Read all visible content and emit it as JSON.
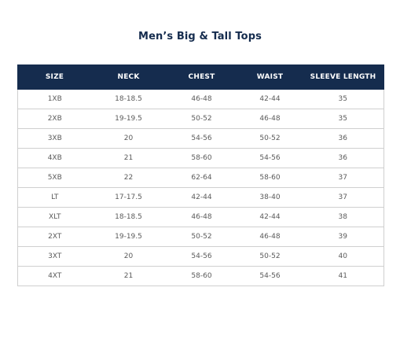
{
  "title": "Men’s Big & Tall Tops",
  "table": {
    "headers": [
      "SIZE",
      "NECK",
      "CHEST",
      "WAIST",
      "SLEEVE LENGTH"
    ],
    "rows": [
      [
        "1XB",
        "18-18.5",
        "46-48",
        "42-44",
        "35"
      ],
      [
        "2XB",
        "19-19.5",
        "50-52",
        "46-48",
        "35"
      ],
      [
        "3XB",
        "20",
        "54-56",
        "50-52",
        "36"
      ],
      [
        "4XB",
        "21",
        "58-60",
        "54-56",
        "36"
      ],
      [
        "5XB",
        "22",
        "62-64",
        "58-60",
        "37"
      ],
      [
        "LT",
        "17-17.5",
        "42-44",
        "38-40",
        "37"
      ],
      [
        "XLT",
        "18-18.5",
        "46-48",
        "42-44",
        "38"
      ],
      [
        "2XT",
        "19-19.5",
        "50-52",
        "46-48",
        "39"
      ],
      [
        "3XT",
        "20",
        "54-56",
        "50-52",
        "40"
      ],
      [
        "4XT",
        "21",
        "58-60",
        "54-56",
        "41"
      ]
    ]
  },
  "colors": {
    "header_bg": "#152c4e",
    "header_text": "#ffffff",
    "title_text": "#152c4e",
    "cell_text": "#5a5a5a",
    "border": "#cfcfcf"
  }
}
